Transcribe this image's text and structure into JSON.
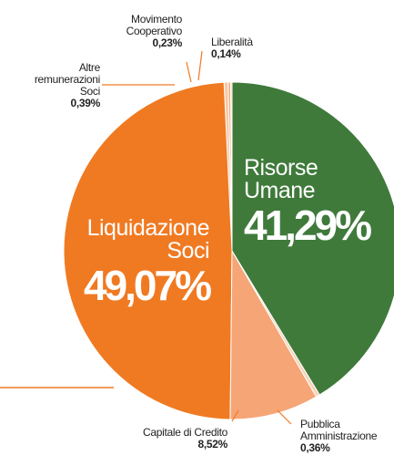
{
  "chart_data": {
    "type": "pie",
    "categories": [
      "Risorse Umane",
      "Pubblica Amministrazione",
      "Capitale di Credito",
      "Liquidazione Soci",
      "Altre remunerazioni Soci",
      "Movimento Cooperativo",
      "Liberalità"
    ],
    "values": [
      41.29,
      0.36,
      8.52,
      49.07,
      0.39,
      0.23,
      0.14
    ],
    "value_labels": [
      "41,29%",
      "0,36%",
      "8,52%",
      "49,07%",
      "0,39%",
      "0,23%",
      "0,14%"
    ],
    "colors": [
      "#3f7a3b",
      "#f8d2b6",
      "#f5a576",
      "#f07a22",
      "#f7c9a5",
      "#f4a474",
      "#f8c8a2"
    ]
  }
}
